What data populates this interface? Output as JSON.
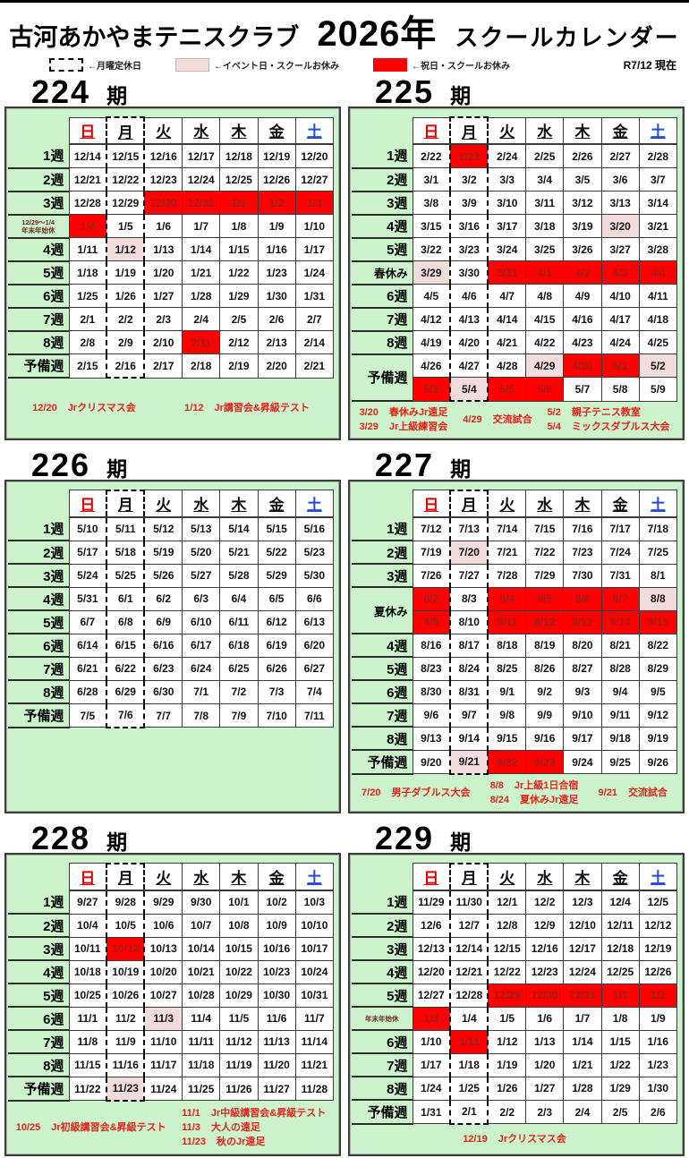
{
  "colors": {
    "holiday_bg": "#ff0000",
    "holiday_text": "#9c1f1a",
    "event_bg": "#f2dcdb",
    "panel_bg": "#cdf3cd",
    "note_text": "#e2231a",
    "sunday": "#e00000",
    "saturday": "#1f4fd8"
  },
  "header": {
    "club": "古河あかやまテニスクラブ",
    "year": "2026年",
    "title": "スクールカレンダー",
    "as_of": "R7/12 現在",
    "legend": [
      {
        "style": "dashed",
        "label": "←月曜定休日"
      },
      {
        "style": "event",
        "label": "←イベント日・スクールお休み"
      },
      {
        "style": "holiday",
        "label": "←祝日・スクールお休み"
      }
    ]
  },
  "days": [
    "日",
    "月",
    "火",
    "水",
    "木",
    "金",
    "土"
  ],
  "calendars": [
    {
      "num": "224",
      "suffix": "期",
      "rows": [
        {
          "label": "1週",
          "cells": [
            "12/14",
            "12/15",
            "12/16",
            "12/17",
            "12/18",
            "12/19",
            "12/20"
          ]
        },
        {
          "label": "2週",
          "cells": [
            "12/21",
            "12/22",
            "12/23",
            "12/24",
            "12/25",
            "12/26",
            "12/27"
          ]
        },
        {
          "label": "3週",
          "cells": [
            "12/28",
            "12/29",
            {
              "d": "12/30",
              "bg": "holiday"
            },
            {
              "d": "12/31",
              "bg": "holiday"
            },
            {
              "d": "1/1",
              "bg": "holiday"
            },
            {
              "d": "1/2",
              "bg": "holiday"
            },
            {
              "d": "1/3",
              "bg": "holiday"
            }
          ]
        },
        {
          "small": [
            "12/29～1/4",
            "年末年始休"
          ],
          "cells": [
            {
              "d": "1/4",
              "bg": "holiday"
            },
            "1/5",
            "1/6",
            "1/7",
            "1/8",
            "1/9",
            "1/10"
          ]
        },
        {
          "label": "4週",
          "cells": [
            "1/11",
            {
              "d": "1/12",
              "bg": "event"
            },
            "1/13",
            "1/14",
            "1/15",
            "1/16",
            "1/17"
          ]
        },
        {
          "label": "5週",
          "cells": [
            "1/18",
            "1/19",
            "1/20",
            "1/21",
            "1/22",
            "1/23",
            "1/24"
          ]
        },
        {
          "label": "6週",
          "cells": [
            "1/25",
            "1/26",
            "1/27",
            "1/28",
            "1/29",
            "1/30",
            "1/31"
          ]
        },
        {
          "label": "7週",
          "cells": [
            "2/1",
            "2/2",
            "2/3",
            "2/4",
            "2/5",
            "2/6",
            "2/7"
          ]
        },
        {
          "label": "8週",
          "cells": [
            "2/8",
            "2/9",
            "2/10",
            {
              "d": "2/11",
              "bg": "holiday"
            },
            "2/12",
            "2/13",
            "2/14"
          ]
        },
        {
          "label": "予備週",
          "cells": [
            "2/15",
            "2/16",
            "2/17",
            "2/18",
            "2/19",
            "2/20",
            "2/21"
          ]
        }
      ],
      "notes": [
        [
          {
            "date": "12/20",
            "text": "Jrクリスマス会"
          }
        ],
        [
          {
            "date": "1/12",
            "text": "Jr講習会&昇級テスト"
          }
        ]
      ]
    },
    {
      "num": "225",
      "suffix": "期",
      "rows": [
        {
          "label": "1週",
          "cells": [
            "2/22",
            {
              "d": "2/23",
              "bg": "holiday"
            },
            "2/24",
            "2/25",
            "2/26",
            "2/27",
            "2/28"
          ]
        },
        {
          "label": "2週",
          "cells": [
            "3/1",
            "3/2",
            "3/3",
            "3/4",
            "3/5",
            "3/6",
            "3/7"
          ]
        },
        {
          "label": "3週",
          "cells": [
            "3/8",
            "3/9",
            "3/10",
            "3/11",
            "3/12",
            "3/13",
            "3/14"
          ]
        },
        {
          "label": "4週",
          "cells": [
            "3/15",
            "3/16",
            "3/17",
            "3/18",
            "3/19",
            {
              "d": "3/20",
              "bg": "event"
            },
            "3/21"
          ]
        },
        {
          "label": "5週",
          "cells": [
            "3/22",
            "3/23",
            "3/24",
            "3/25",
            "3/26",
            "3/27",
            "3/28"
          ]
        },
        {
          "label": "春休み",
          "cls": "season",
          "cells": [
            {
              "d": "3/29",
              "bg": "event"
            },
            "3/30",
            {
              "d": "3/31",
              "bg": "holiday"
            },
            {
              "d": "4/1",
              "bg": "holiday"
            },
            {
              "d": "4/2",
              "bg": "holiday"
            },
            {
              "d": "4/3",
              "bg": "holiday"
            },
            {
              "d": "4/4",
              "bg": "holiday"
            }
          ]
        },
        {
          "label": "6週",
          "cells": [
            "4/5",
            "4/6",
            "4/7",
            "4/8",
            "4/9",
            "4/10",
            "4/11"
          ]
        },
        {
          "label": "7週",
          "cells": [
            "4/12",
            "4/13",
            "4/14",
            "4/15",
            "4/16",
            "4/17",
            "4/18"
          ]
        },
        {
          "label": "8週",
          "cells": [
            "4/19",
            "4/20",
            "4/21",
            "4/22",
            "4/23",
            "4/24",
            "4/25"
          ]
        },
        {
          "label": "予備週",
          "rowspan": 2,
          "cells": [
            "4/26",
            "4/27",
            "4/28",
            {
              "d": "4/29",
              "bg": "event"
            },
            {
              "d": "4/30",
              "bg": "holiday"
            },
            {
              "d": "5/1",
              "bg": "holiday"
            },
            {
              "d": "5/2",
              "bg": "event"
            }
          ]
        },
        {
          "covered": true,
          "cells": [
            {
              "d": "5/3",
              "bg": "holiday"
            },
            {
              "d": "5/4",
              "bg": "event"
            },
            {
              "d": "5/5",
              "bg": "holiday"
            },
            {
              "d": "5/6",
              "bg": "holiday"
            },
            "5/7",
            "5/8",
            "5/9"
          ]
        }
      ],
      "notes": [
        [
          {
            "date": "3/20",
            "text": "春休みJr遠足"
          },
          {
            "date": "3/29",
            "text": "Jr上級練習会"
          }
        ],
        [
          {
            "date": "4/29",
            "text": "交流試合"
          }
        ],
        [
          {
            "date": "5/2",
            "text": "親子テニス教室"
          },
          {
            "date": "5/4",
            "text": "ミックスダブルス大会"
          }
        ]
      ]
    },
    {
      "num": "226",
      "suffix": "期",
      "rows": [
        {
          "label": "1週",
          "cells": [
            "5/10",
            "5/11",
            "5/12",
            "5/13",
            "5/14",
            "5/15",
            "5/16"
          ]
        },
        {
          "label": "2週",
          "cells": [
            "5/17",
            "5/18",
            "5/19",
            "5/20",
            "5/21",
            "5/22",
            "5/23"
          ]
        },
        {
          "label": "3週",
          "cells": [
            "5/24",
            "5/25",
            "5/26",
            "5/27",
            "5/28",
            "5/29",
            "5/30"
          ]
        },
        {
          "label": "4週",
          "cells": [
            "5/31",
            "6/1",
            "6/2",
            "6/3",
            "6/4",
            "6/5",
            "6/6"
          ]
        },
        {
          "label": "5週",
          "cells": [
            "6/7",
            "6/8",
            "6/9",
            "6/10",
            "6/11",
            "6/12",
            "6/13"
          ]
        },
        {
          "label": "6週",
          "cells": [
            "6/14",
            "6/15",
            "6/16",
            "6/17",
            "6/18",
            "6/19",
            "6/20"
          ]
        },
        {
          "label": "7週",
          "cells": [
            "6/21",
            "6/22",
            "6/23",
            "6/24",
            "6/25",
            "6/26",
            "6/27"
          ]
        },
        {
          "label": "8週",
          "cells": [
            "6/28",
            "6/29",
            "6/30",
            "7/1",
            "7/2",
            "7/3",
            "7/4"
          ]
        },
        {
          "label": "予備週",
          "cells": [
            "7/5",
            "7/6",
            "7/7",
            "7/8",
            "7/9",
            "7/10",
            "7/11"
          ]
        }
      ],
      "notes": []
    },
    {
      "num": "227",
      "suffix": "期",
      "rows": [
        {
          "label": "1週",
          "cells": [
            "7/12",
            "7/13",
            "7/14",
            "7/15",
            "7/16",
            "7/17",
            "7/18"
          ]
        },
        {
          "label": "2週",
          "cells": [
            "7/19",
            {
              "d": "7/20",
              "bg": "event"
            },
            "7/21",
            "7/22",
            "7/23",
            "7/24",
            "7/25"
          ]
        },
        {
          "label": "3週",
          "cells": [
            "7/26",
            "7/27",
            "7/28",
            "7/29",
            "7/30",
            "7/31",
            "8/1"
          ]
        },
        {
          "label": "夏休み",
          "cls": "season",
          "rowspan": 2,
          "cells": [
            {
              "d": "8/2",
              "bg": "holiday"
            },
            "8/3",
            {
              "d": "8/4",
              "bg": "holiday"
            },
            {
              "d": "8/5",
              "bg": "holiday"
            },
            {
              "d": "8/6",
              "bg": "holiday"
            },
            {
              "d": "8/7",
              "bg": "holiday"
            },
            {
              "d": "8/8",
              "bg": "event"
            }
          ]
        },
        {
          "covered": true,
          "cells": [
            {
              "d": "8/9",
              "bg": "holiday"
            },
            "8/10",
            {
              "d": "8/11",
              "bg": "holiday"
            },
            {
              "d": "8/12",
              "bg": "holiday"
            },
            {
              "d": "8/13",
              "bg": "holiday"
            },
            {
              "d": "8/14",
              "bg": "holiday"
            },
            {
              "d": "8/15",
              "bg": "holiday"
            }
          ]
        },
        {
          "label": "4週",
          "cells": [
            "8/16",
            "8/17",
            "8/18",
            "8/19",
            "8/20",
            "8/21",
            "8/22"
          ]
        },
        {
          "label": "5週",
          "cells": [
            "8/23",
            "8/24",
            "8/25",
            "8/26",
            "8/27",
            "8/28",
            "8/29"
          ]
        },
        {
          "label": "6週",
          "cells": [
            "8/30",
            "8/31",
            "9/1",
            "9/2",
            "9/3",
            "9/4",
            "9/5"
          ]
        },
        {
          "label": "7週",
          "cells": [
            "9/6",
            "9/7",
            "9/8",
            "9/9",
            "9/10",
            "9/11",
            "9/12"
          ]
        },
        {
          "label": "8週",
          "cells": [
            "9/13",
            "9/14",
            "9/15",
            "9/16",
            "9/17",
            "9/18",
            "9/19"
          ]
        },
        {
          "label": "予備週",
          "cells": [
            "9/20",
            {
              "d": "9/21",
              "bg": "event"
            },
            {
              "d": "9/22",
              "bg": "holiday"
            },
            {
              "d": "9/23",
              "bg": "holiday"
            },
            "9/24",
            "9/25",
            "9/26"
          ]
        }
      ],
      "notes": [
        [
          {
            "date": "7/20",
            "text": "男子ダブルス大会"
          }
        ],
        [
          {
            "date": "8/8",
            "text": "Jr上級1日合宿"
          },
          {
            "date": "8/24",
            "text": "夏休みJr遠足"
          }
        ],
        [
          {
            "date": "9/21",
            "text": "交流試合"
          }
        ]
      ]
    },
    {
      "num": "228",
      "suffix": "期",
      "rows": [
        {
          "label": "1週",
          "cells": [
            "9/27",
            "9/28",
            "9/29",
            "9/30",
            "10/1",
            "10/2",
            "10/3"
          ]
        },
        {
          "label": "2週",
          "cells": [
            "10/4",
            "10/5",
            "10/6",
            "10/7",
            "10/8",
            "10/9",
            "10/10"
          ]
        },
        {
          "label": "3週",
          "cells": [
            "10/11",
            {
              "d": "10/12",
              "bg": "holiday"
            },
            "10/13",
            "10/14",
            "10/15",
            "10/16",
            "10/17"
          ]
        },
        {
          "label": "4週",
          "cells": [
            "10/18",
            "10/19",
            "10/20",
            "10/21",
            "10/22",
            "10/23",
            "10/24"
          ]
        },
        {
          "label": "5週",
          "cells": [
            "10/25",
            "10/26",
            "10/27",
            "10/28",
            "10/29",
            "10/30",
            "10/31"
          ]
        },
        {
          "label": "6週",
          "cells": [
            "11/1",
            "11/2",
            {
              "d": "11/3",
              "bg": "event"
            },
            "11/4",
            "11/5",
            "11/6",
            "11/7"
          ]
        },
        {
          "label": "7週",
          "cells": [
            "11/8",
            "11/9",
            "11/10",
            "11/11",
            "11/12",
            "11/13",
            "11/14"
          ]
        },
        {
          "label": "8週",
          "cells": [
            "11/15",
            "11/16",
            "11/17",
            "11/18",
            "11/19",
            "11/20",
            "11/21"
          ]
        },
        {
          "label": "予備週",
          "cells": [
            "11/22",
            {
              "d": "11/23",
              "bg": "event"
            },
            "11/24",
            "11/25",
            "11/26",
            "11/27",
            "11/28"
          ]
        }
      ],
      "notes": [
        [
          {
            "date": "10/25",
            "text": "Jr初級講習会&昇級テスト"
          }
        ],
        [
          {
            "date": "11/1",
            "text": "Jr中級講習会&昇級テスト"
          },
          {
            "date": "11/3",
            "text": "大人の遠足"
          },
          {
            "date": "11/23",
            "text": "秋のJr遠足"
          }
        ]
      ]
    },
    {
      "num": "229",
      "suffix": "期",
      "rows": [
        {
          "label": "1週",
          "cells": [
            "11/29",
            "11/30",
            "12/1",
            "12/2",
            "12/3",
            "12/4",
            "12/5"
          ]
        },
        {
          "label": "2週",
          "cells": [
            "12/6",
            "12/7",
            "12/8",
            "12/9",
            "12/10",
            "12/11",
            "12/12"
          ]
        },
        {
          "label": "3週",
          "cells": [
            "12/13",
            "12/14",
            "12/15",
            "12/16",
            "12/17",
            "12/18",
            "12/19"
          ]
        },
        {
          "label": "4週",
          "cells": [
            "12/20",
            "12/21",
            "12/22",
            "12/23",
            "12/24",
            "12/25",
            "12/26"
          ]
        },
        {
          "label": "5週",
          "cells": [
            "12/27",
            "12/28",
            {
              "d": "12/29",
              "bg": "holiday"
            },
            {
              "d": "12/30",
              "bg": "holiday"
            },
            {
              "d": "12/31",
              "bg": "holiday"
            },
            {
              "d": "1/1",
              "bg": "holiday"
            },
            {
              "d": "1/2",
              "bg": "holiday"
            }
          ]
        },
        {
          "small": [
            "年末年始休"
          ],
          "cells": [
            {
              "d": "1/3",
              "bg": "holiday"
            },
            "1/4",
            "1/5",
            "1/6",
            "1/7",
            "1/8",
            "1/9"
          ]
        },
        {
          "label": "6週",
          "cells": [
            "1/10",
            {
              "d": "1/11",
              "bg": "holiday"
            },
            "1/12",
            "1/13",
            "1/14",
            "1/15",
            "1/16"
          ]
        },
        {
          "label": "7週",
          "cells": [
            "1/17",
            "1/18",
            "1/19",
            "1/20",
            "1/21",
            "1/22",
            "1/23"
          ]
        },
        {
          "label": "8週",
          "cells": [
            "1/24",
            "1/25",
            "1/26",
            "1/27",
            "1/28",
            "1/29",
            "1/30"
          ]
        },
        {
          "label": "予備週",
          "cells": [
            "1/31",
            "2/1",
            "2/2",
            "2/3",
            "2/4",
            "2/5",
            "2/6"
          ]
        }
      ],
      "notes": [
        [
          {
            "date": "12/19",
            "text": "Jrクリスマス会"
          }
        ]
      ]
    }
  ]
}
